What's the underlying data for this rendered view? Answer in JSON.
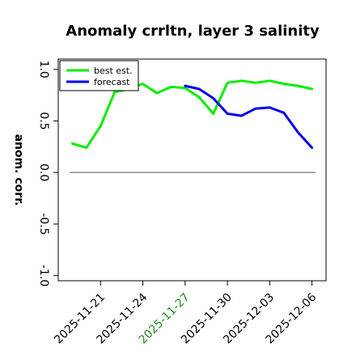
{
  "chart_data": {
    "type": "line",
    "title": "Anomaly crrltn, layer 3 salinity",
    "ylabel": "anom. corr.",
    "xlabel": "",
    "ylim": [
      -1.05,
      1.1
    ],
    "yticks": [
      -1.0,
      -0.5,
      0.0,
      0.5,
      1.0
    ],
    "ytick_labels": [
      "-1.0",
      "-0.5",
      "0.0",
      "0.5",
      "1.0"
    ],
    "xlim": [
      "2025-11-18",
      "2025-12-07"
    ],
    "xticks": [
      "2025-11-21",
      "2025-11-24",
      "2025-11-27",
      "2025-11-30",
      "2025-12-03",
      "2025-12-06"
    ],
    "xtick_colors": [
      "#000000",
      "#000000",
      "#228b22",
      "#000000",
      "#000000",
      "#000000"
    ],
    "zero_line": true,
    "grid": false,
    "legend": {
      "placement": "top-left"
    },
    "series": [
      {
        "name": "best est.",
        "color": "#00ee00",
        "x": [
          "2025-11-19",
          "2025-11-20",
          "2025-11-21",
          "2025-11-22",
          "2025-11-23",
          "2025-11-24",
          "2025-11-25",
          "2025-11-26",
          "2025-11-27",
          "2025-11-28",
          "2025-11-29",
          "2025-11-30",
          "2025-12-01",
          "2025-12-02",
          "2025-12-03",
          "2025-12-04",
          "2025-12-05",
          "2025-12-06"
        ],
        "values": [
          0.28,
          0.24,
          0.45,
          0.78,
          0.81,
          0.86,
          0.77,
          0.83,
          0.82,
          0.73,
          0.57,
          0.87,
          0.89,
          0.87,
          0.89,
          0.86,
          0.84,
          0.81
        ]
      },
      {
        "name": "forecast",
        "color": "#0000ee",
        "x": [
          "2025-11-27",
          "2025-11-28",
          "2025-11-29",
          "2025-11-30",
          "2025-12-01",
          "2025-12-02",
          "2025-12-03",
          "2025-12-04",
          "2025-12-05",
          "2025-12-06"
        ],
        "values": [
          0.84,
          0.81,
          0.72,
          0.57,
          0.55,
          0.62,
          0.63,
          0.58,
          0.39,
          0.24
        ]
      }
    ]
  }
}
